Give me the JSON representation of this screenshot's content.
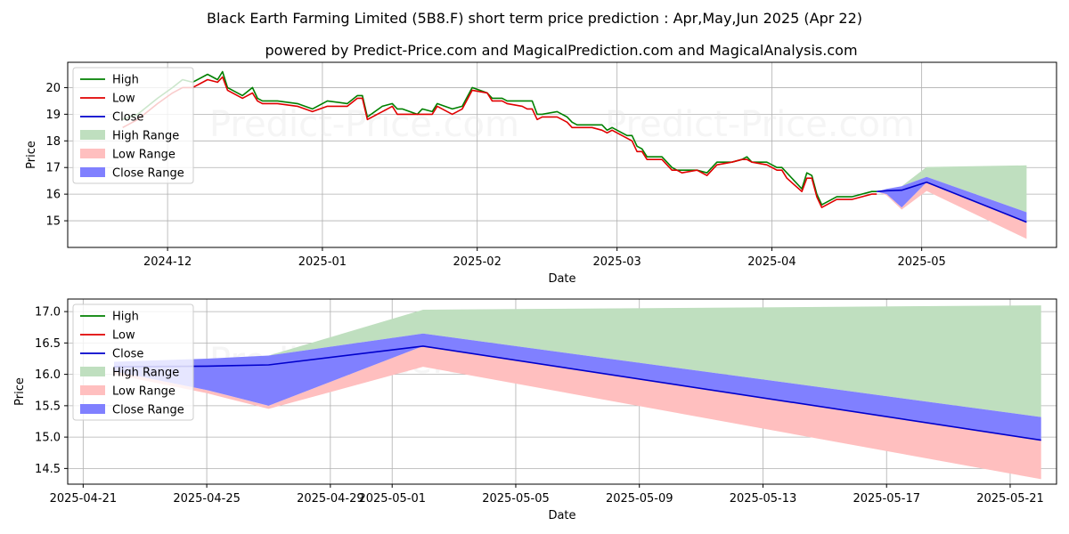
{
  "title": "Black Earth Farming Limited (5B8.F) short term price prediction : Apr,May,Jun 2025 (Apr 22)",
  "subtitle": "powered by Predict-Price.com and MagicalPrediction.com and MagicalAnalysis.com",
  "watermark": "Predict-Price.com",
  "colors": {
    "high": "#008000",
    "low": "#e00000",
    "close": "#0000cc",
    "high_range": "#bfdfbf",
    "low_range": "#ffbfbf",
    "close_range": "#8080ff",
    "grid": "#b0b0b0"
  },
  "legend": {
    "placement": "top-left",
    "entries": [
      {
        "label": "High",
        "kind": "line",
        "color": "#008000"
      },
      {
        "label": "Low",
        "kind": "line",
        "color": "#e00000"
      },
      {
        "label": "Close",
        "kind": "line",
        "color": "#0000cc"
      },
      {
        "label": "High Range",
        "kind": "patch",
        "color": "#bfdfbf"
      },
      {
        "label": "Low Range",
        "kind": "patch",
        "color": "#ffbfbf"
      },
      {
        "label": "Close Range",
        "kind": "patch",
        "color": "#8080ff"
      }
    ]
  },
  "chart_data": [
    {
      "type": "line",
      "xlabel": "Date",
      "ylabel": "Price",
      "grid": true,
      "xlim": [
        "2024-11-11",
        "2025-05-28"
      ],
      "ylim": [
        14.0,
        20.95
      ],
      "xticks": [
        {
          "date": "2024-12-01",
          "label": "2024-12"
        },
        {
          "date": "2025-01-01",
          "label": "2025-01"
        },
        {
          "date": "2025-02-01",
          "label": "2025-02"
        },
        {
          "date": "2025-03-01",
          "label": "2025-03"
        },
        {
          "date": "2025-04-01",
          "label": "2025-04"
        },
        {
          "date": "2025-05-01",
          "label": "2025-05"
        }
      ],
      "yticks": [
        15,
        16,
        17,
        18,
        19,
        20
      ],
      "history": {
        "x": [
          "2024-11-22",
          "2024-11-25",
          "2024-11-27",
          "2024-11-29",
          "2024-12-02",
          "2024-12-04",
          "2024-12-06",
          "2024-12-09",
          "2024-12-11",
          "2024-12-12",
          "2024-12-13",
          "2024-12-16",
          "2024-12-18",
          "2024-12-19",
          "2024-12-20",
          "2024-12-23",
          "2024-12-27",
          "2024-12-30",
          "2025-01-02",
          "2025-01-06",
          "2025-01-08",
          "2025-01-09",
          "2025-01-10",
          "2025-01-13",
          "2025-01-15",
          "2025-01-16",
          "2025-01-17",
          "2025-01-20",
          "2025-01-21",
          "2025-01-23",
          "2025-01-24",
          "2025-01-27",
          "2025-01-29",
          "2025-01-31",
          "2025-02-03",
          "2025-02-04",
          "2025-02-06",
          "2025-02-07",
          "2025-02-10",
          "2025-02-11",
          "2025-02-12",
          "2025-02-13",
          "2025-02-14",
          "2025-02-17",
          "2025-02-18",
          "2025-02-19",
          "2025-02-20",
          "2025-02-21",
          "2025-02-24",
          "2025-02-26",
          "2025-02-27",
          "2025-02-28",
          "2025-03-03",
          "2025-03-04",
          "2025-03-05",
          "2025-03-06",
          "2025-03-07",
          "2025-03-10",
          "2025-03-12",
          "2025-03-13",
          "2025-03-14",
          "2025-03-17",
          "2025-03-19",
          "2025-03-21",
          "2025-03-24",
          "2025-03-26",
          "2025-03-27",
          "2025-03-28",
          "2025-03-31",
          "2025-04-01",
          "2025-04-02",
          "2025-04-03",
          "2025-04-04",
          "2025-04-07",
          "2025-04-08",
          "2025-04-09",
          "2025-04-10",
          "2025-04-11",
          "2025-04-14",
          "2025-04-17",
          "2025-04-21",
          "2025-04-22"
        ],
        "high": [
          18.8,
          19.0,
          19.3,
          19.6,
          20.0,
          20.3,
          20.2,
          20.5,
          20.3,
          20.6,
          20.0,
          19.7,
          20.0,
          19.6,
          19.5,
          19.5,
          19.4,
          19.2,
          19.5,
          19.4,
          19.7,
          19.7,
          18.9,
          19.3,
          19.4,
          19.2,
          19.2,
          19.0,
          19.2,
          19.1,
          19.4,
          19.2,
          19.3,
          20.0,
          19.8,
          19.6,
          19.6,
          19.5,
          19.5,
          19.5,
          19.5,
          19.0,
          19.0,
          19.1,
          19.0,
          18.9,
          18.7,
          18.6,
          18.6,
          18.6,
          18.4,
          18.5,
          18.2,
          18.2,
          17.8,
          17.7,
          17.4,
          17.4,
          17.0,
          16.9,
          16.9,
          16.9,
          16.8,
          17.2,
          17.2,
          17.3,
          17.4,
          17.2,
          17.2,
          17.1,
          17.0,
          17.0,
          16.8,
          16.2,
          16.8,
          16.7,
          16.0,
          15.6,
          15.9,
          15.9,
          16.1,
          16.1
        ],
        "low": [
          18.5,
          18.8,
          19.1,
          19.4,
          19.8,
          20.0,
          20.0,
          20.3,
          20.2,
          20.4,
          19.9,
          19.6,
          19.8,
          19.5,
          19.4,
          19.4,
          19.3,
          19.1,
          19.3,
          19.3,
          19.6,
          19.6,
          18.8,
          19.1,
          19.3,
          19.0,
          19.0,
          19.0,
          19.0,
          19.0,
          19.3,
          19.0,
          19.2,
          19.9,
          19.8,
          19.5,
          19.5,
          19.4,
          19.3,
          19.2,
          19.2,
          18.8,
          18.9,
          18.9,
          18.8,
          18.7,
          18.5,
          18.5,
          18.5,
          18.4,
          18.3,
          18.4,
          18.1,
          18.0,
          17.6,
          17.6,
          17.3,
          17.3,
          16.9,
          16.9,
          16.8,
          16.9,
          16.7,
          17.1,
          17.2,
          17.3,
          17.3,
          17.2,
          17.1,
          17.0,
          16.9,
          16.9,
          16.6,
          16.1,
          16.6,
          16.6,
          15.9,
          15.5,
          15.8,
          15.8,
          16.0,
          16.0
        ]
      },
      "forecast": {
        "x": [
          "2025-04-22",
          "2025-04-24",
          "2025-04-27",
          "2025-05-02",
          "2025-05-22"
        ],
        "close": [
          16.1,
          16.13,
          16.15,
          16.45,
          14.95
        ],
        "close_range_upper": [
          16.1,
          16.2,
          16.3,
          16.65,
          15.32
        ],
        "close_range_lower": [
          16.1,
          16.0,
          15.5,
          16.45,
          14.95
        ],
        "high_range_upper": [
          16.1,
          16.2,
          16.3,
          17.02,
          17.08
        ],
        "high_range_lower": [
          16.1,
          16.2,
          16.3,
          16.65,
          15.32
        ],
        "low_range_upper": [
          16.1,
          16.0,
          15.5,
          16.45,
          14.95
        ],
        "low_range_lower": [
          16.1,
          15.95,
          15.42,
          16.12,
          14.32
        ]
      }
    },
    {
      "type": "line",
      "xlabel": "Date",
      "ylabel": "Price",
      "grid": true,
      "xlim": [
        "2025-04-20.5",
        "2025-05-22.5"
      ],
      "ylim": [
        14.25,
        17.2
      ],
      "xticks": [
        {
          "date": "2025-04-21",
          "label": "2025-04-21"
        },
        {
          "date": "2025-04-25",
          "label": "2025-04-25"
        },
        {
          "date": "2025-04-29",
          "label": "2025-04-29"
        },
        {
          "date": "2025-05-01",
          "label": "2025-05-01"
        },
        {
          "date": "2025-05-05",
          "label": "2025-05-05"
        },
        {
          "date": "2025-05-09",
          "label": "2025-05-09"
        },
        {
          "date": "2025-05-13",
          "label": "2025-05-13"
        },
        {
          "date": "2025-05-17",
          "label": "2025-05-17"
        },
        {
          "date": "2025-05-21",
          "label": "2025-05-21"
        }
      ],
      "yticks": [
        14.5,
        15.0,
        15.5,
        16.0,
        16.5,
        17.0
      ],
      "forecast": {
        "x": [
          "2025-04-22",
          "2025-04-25",
          "2025-04-27",
          "2025-05-02",
          "2025-05-22"
        ],
        "close": [
          16.12,
          16.13,
          16.15,
          16.45,
          14.95
        ],
        "close_range_upper": [
          16.2,
          16.25,
          16.3,
          16.65,
          15.32
        ],
        "close_range_lower": [
          16.05,
          15.75,
          15.5,
          16.45,
          14.95
        ],
        "high_range_upper": [
          16.2,
          16.25,
          16.3,
          17.03,
          17.1
        ],
        "high_range_lower": [
          16.2,
          16.25,
          16.3,
          16.65,
          15.32
        ],
        "low_range_upper": [
          16.05,
          15.75,
          15.5,
          16.45,
          14.95
        ],
        "low_range_lower": [
          16.0,
          15.7,
          15.45,
          16.12,
          14.33
        ]
      }
    }
  ]
}
